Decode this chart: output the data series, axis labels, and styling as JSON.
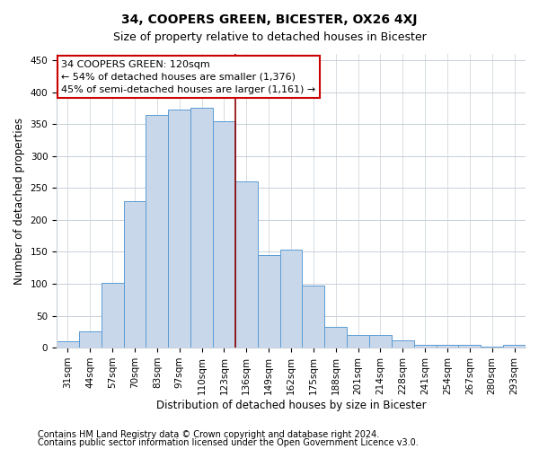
{
  "title": "34, COOPERS GREEN, BICESTER, OX26 4XJ",
  "subtitle": "Size of property relative to detached houses in Bicester",
  "xlabel": "Distribution of detached houses by size in Bicester",
  "ylabel": "Number of detached properties",
  "bar_labels": [
    "31sqm",
    "44sqm",
    "57sqm",
    "70sqm",
    "83sqm",
    "97sqm",
    "110sqm",
    "123sqm",
    "136sqm",
    "149sqm",
    "162sqm",
    "175sqm",
    "188sqm",
    "201sqm",
    "214sqm",
    "228sqm",
    "241sqm",
    "254sqm",
    "267sqm",
    "280sqm",
    "293sqm"
  ],
  "bar_values": [
    10,
    26,
    101,
    230,
    365,
    373,
    375,
    355,
    260,
    145,
    153,
    97,
    32,
    20,
    20,
    11,
    5,
    5,
    4,
    2,
    4
  ],
  "bar_color": "#c8d8ea",
  "bar_edge_color": "#5b9bd5",
  "highlight_index": 7,
  "highlight_line_color": "#8b0000",
  "annotation_title": "34 COOPERS GREEN: 120sqm",
  "annotation_line1": "← 54% of detached houses are smaller (1,376)",
  "annotation_line2": "45% of semi-detached houses are larger (1,161) →",
  "annotation_box_color": "#ffffff",
  "annotation_box_edge_color": "#cc0000",
  "ylim": [
    0,
    460
  ],
  "yticks": [
    0,
    50,
    100,
    150,
    200,
    250,
    300,
    350,
    400,
    450
  ],
  "footer_line1": "Contains HM Land Registry data © Crown copyright and database right 2024.",
  "footer_line2": "Contains public sector information licensed under the Open Government Licence v3.0.",
  "bg_color": "#ffffff",
  "grid_color": "#c8d0d8",
  "title_fontsize": 10,
  "subtitle_fontsize": 9,
  "axis_label_fontsize": 8.5,
  "tick_fontsize": 7.5,
  "annotation_fontsize": 8,
  "footer_fontsize": 7
}
